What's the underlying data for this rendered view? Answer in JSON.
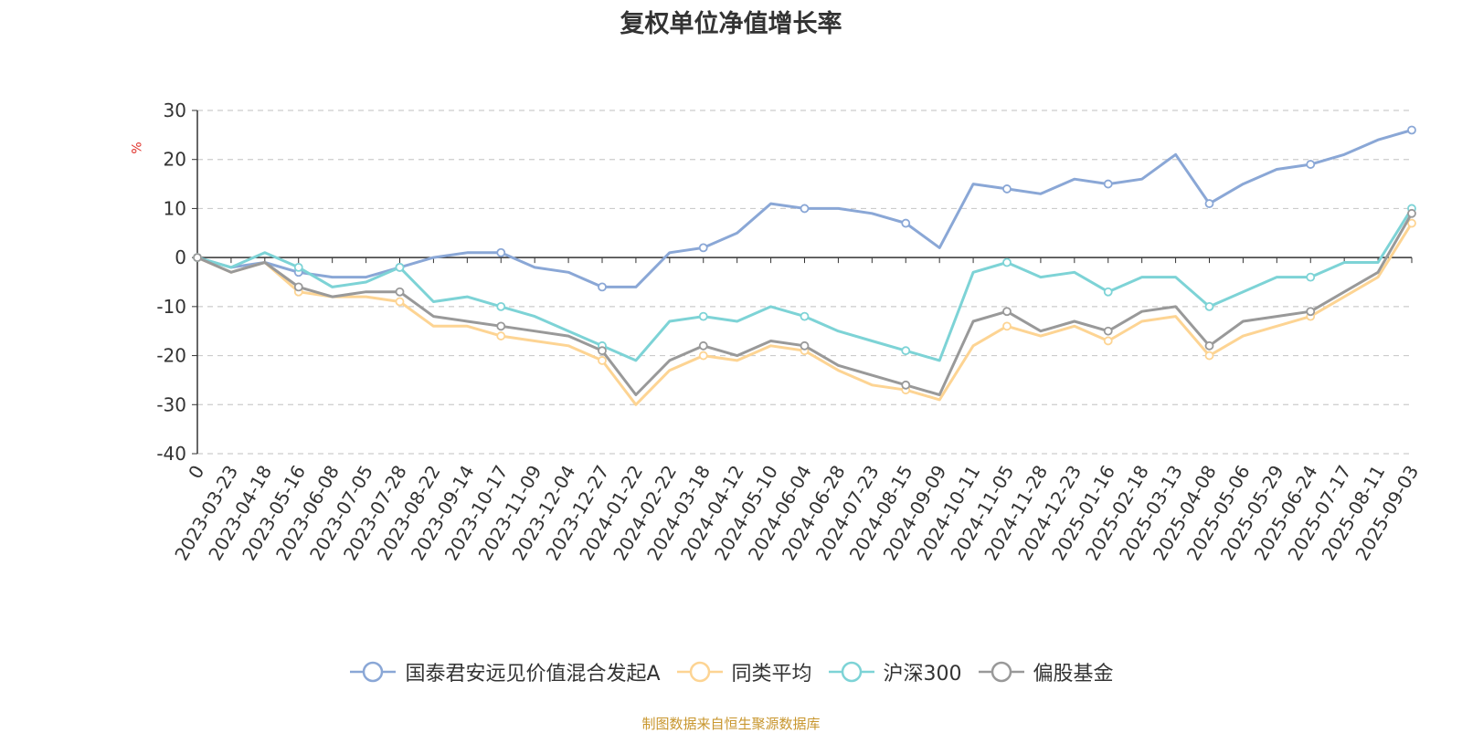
{
  "chart_data": {
    "type": "line",
    "title": "复权单位净值增长率",
    "ylabel": "%",
    "ylim": [
      -40,
      30
    ],
    "yticks": [
      30,
      20,
      10,
      0,
      -10,
      -20,
      -30,
      -40
    ],
    "grid": true,
    "legend_position": "bottom",
    "x": [
      "0",
      "2023-03-23",
      "2023-04-18",
      "2023-05-16",
      "2023-06-08",
      "2023-07-05",
      "2023-07-28",
      "2023-08-22",
      "2023-09-14",
      "2023-10-17",
      "2023-11-09",
      "2023-12-04",
      "2023-12-27",
      "2024-01-22",
      "2024-02-22",
      "2024-03-18",
      "2024-04-12",
      "2024-05-10",
      "2024-06-04",
      "2024-06-28",
      "2024-07-23",
      "2024-08-15",
      "2024-09-09",
      "2024-10-11",
      "2024-11-05",
      "2024-11-28",
      "2024-12-23",
      "2025-01-16",
      "2025-02-18",
      "2025-03-13",
      "2025-04-08",
      "2025-05-06",
      "2025-05-29",
      "2025-06-24",
      "2025-07-17",
      "2025-08-11",
      "2025-09-03"
    ],
    "series": [
      {
        "name": "国泰君安远见价值混合发起A",
        "color": "#8aa7d6",
        "values": [
          0,
          -2,
          -1,
          -3,
          -4,
          -4,
          -2,
          0,
          1,
          1,
          -2,
          -3,
          -6,
          -6,
          1,
          2,
          5,
          11,
          10,
          10,
          9,
          7,
          2,
          15,
          14,
          13,
          16,
          15,
          16,
          21,
          11,
          15,
          18,
          19,
          21,
          24,
          26
        ]
      },
      {
        "name": "同类平均",
        "color": "#fdd493",
        "values": [
          0,
          -3,
          -1,
          -7,
          -8,
          -8,
          -9,
          -14,
          -14,
          -16,
          -17,
          -18,
          -21,
          -30,
          -23,
          -20,
          -21,
          -18,
          -19,
          -23,
          -26,
          -27,
          -29,
          -18,
          -14,
          -16,
          -14,
          -17,
          -13,
          -12,
          -20,
          -16,
          -14,
          -12,
          -8,
          -4,
          7
        ]
      },
      {
        "name": "沪深300",
        "color": "#7dd3d6",
        "values": [
          0,
          -2,
          1,
          -2,
          -6,
          -5,
          -2,
          -9,
          -8,
          -10,
          -12,
          -15,
          -18,
          -21,
          -13,
          -12,
          -13,
          -10,
          -12,
          -15,
          -17,
          -19,
          -21,
          -3,
          -1,
          -4,
          -3,
          -7,
          -4,
          -4,
          -10,
          -7,
          -4,
          -4,
          -1,
          -1,
          10
        ]
      },
      {
        "name": "偏股基金",
        "color": "#999999",
        "values": [
          0,
          -3,
          -1,
          -6,
          -8,
          -7,
          -7,
          -12,
          -13,
          -14,
          -15,
          -16,
          -19,
          -28,
          -21,
          -18,
          -20,
          -17,
          -18,
          -22,
          -24,
          -26,
          -28,
          -13,
          -11,
          -15,
          -13,
          -15,
          -11,
          -10,
          -18,
          -13,
          -12,
          -11,
          -7,
          -3,
          9
        ]
      }
    ]
  },
  "legend": {
    "items": [
      {
        "label": "国泰君安远见价值混合发起A",
        "color": "#8aa7d6"
      },
      {
        "label": "同类平均",
        "color": "#fdd493"
      },
      {
        "label": "沪深300",
        "color": "#7dd3d6"
      },
      {
        "label": "偏股基金",
        "color": "#999999"
      }
    ]
  },
  "source_note": "制图数据来自恒生聚源数据库"
}
